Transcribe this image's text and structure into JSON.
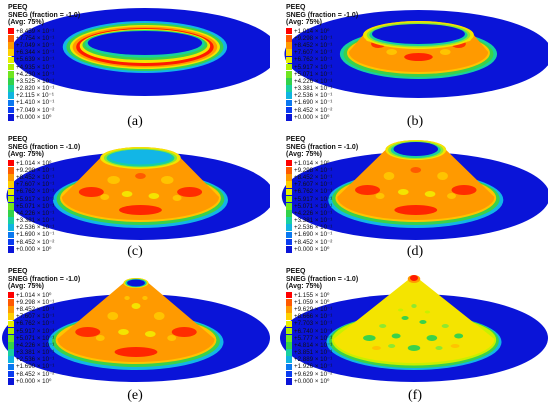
{
  "legend": {
    "title_lines": [
      "PEEQ",
      "SNEG (fraction = -1.0)",
      "(Avg: 75%)"
    ],
    "colors": [
      "#ff0000",
      "#ff5a00",
      "#ff9a00",
      "#ffd000",
      "#e8f000",
      "#b0f000",
      "#70e620",
      "#32d24a",
      "#18d0a0",
      "#10b4e0",
      "#0a78f0",
      "#0a3cf0",
      "#0a14d8"
    ]
  },
  "panels": [
    {
      "label": "(a)",
      "legend_values": [
        "+8.459 × 10⁻¹",
        "+7.754 × 10⁻¹",
        "+7.049 × 10⁻¹",
        "+6.344 × 10⁻¹",
        "+5.639 × 10⁻¹",
        "+4.935 × 10⁻¹",
        "+4.230 × 10⁻¹",
        "+3.525 × 10⁻¹",
        "+2.820 × 10⁻¹",
        "+2.115 × 10⁻¹",
        "+1.410 × 10⁻¹",
        "+7.049 × 10⁻²",
        "+0.000 × 10⁰"
      ]
    },
    {
      "label": "(b)",
      "legend_values": [
        "+1.014 × 10⁰",
        "+9.298 × 10⁻¹",
        "+8.452 × 10⁻¹",
        "+7.607 × 10⁻¹",
        "+6.762 × 10⁻¹",
        "+5.917 × 10⁻¹",
        "+5.071 × 10⁻¹",
        "+4.226 × 10⁻¹",
        "+3.381 × 10⁻¹",
        "+2.536 × 10⁻¹",
        "+1.690 × 10⁻¹",
        "+8.452 × 10⁻²",
        "+0.000 × 10⁰"
      ]
    },
    {
      "label": "(c)",
      "legend_values": [
        "+1.014 × 10⁰",
        "+9.298 × 10⁻¹",
        "+8.452 × 10⁻¹",
        "+7.607 × 10⁻¹",
        "+6.762 × 10⁻¹",
        "+5.917 × 10⁻¹",
        "+5.071 × 10⁻¹",
        "+4.226 × 10⁻¹",
        "+3.381 × 10⁻¹",
        "+2.536 × 10⁻¹",
        "+1.690 × 10⁻¹",
        "+8.452 × 10⁻²",
        "+0.000 × 10⁰"
      ]
    },
    {
      "label": "(d)",
      "legend_values": [
        "+1.014 × 10⁰",
        "+9.298 × 10⁻¹",
        "+8.452 × 10⁻¹",
        "+7.607 × 10⁻¹",
        "+6.762 × 10⁻¹",
        "+5.917 × 10⁻¹",
        "+5.071 × 10⁻¹",
        "+4.226 × 10⁻¹",
        "+3.381 × 10⁻¹",
        "+2.536 × 10⁻¹",
        "+1.690 × 10⁻¹",
        "+8.452 × 10⁻²",
        "+0.000 × 10⁰"
      ]
    },
    {
      "label": "(e)",
      "legend_values": [
        "+1.014 × 10⁰",
        "+9.298 × 10⁻¹",
        "+8.452 × 10⁻¹",
        "+7.607 × 10⁻¹",
        "+6.762 × 10⁻¹",
        "+5.917 × 10⁻¹",
        "+5.071 × 10⁻¹",
        "+4.226 × 10⁻¹",
        "+3.381 × 10⁻¹",
        "+2.536 × 10⁻¹",
        "+1.690 × 10⁻¹",
        "+8.452 × 10⁻²",
        "+0.000 × 10⁰"
      ]
    },
    {
      "label": "(f)",
      "legend_values": [
        "+1.155 × 10⁰",
        "+1.059 × 10⁰",
        "+9.629 × 10⁻¹",
        "+8.666 × 10⁻¹",
        "+7.703 × 10⁻¹",
        "+6.740 × 10⁻¹",
        "+5.777 × 10⁻¹",
        "+4.814 × 10⁻¹",
        "+3.851 × 10⁻¹",
        "+2.889 × 10⁻¹",
        "+1.926 × 10⁻¹",
        "+9.629 × 10⁻²",
        "+0.000 × 10⁰"
      ]
    }
  ]
}
